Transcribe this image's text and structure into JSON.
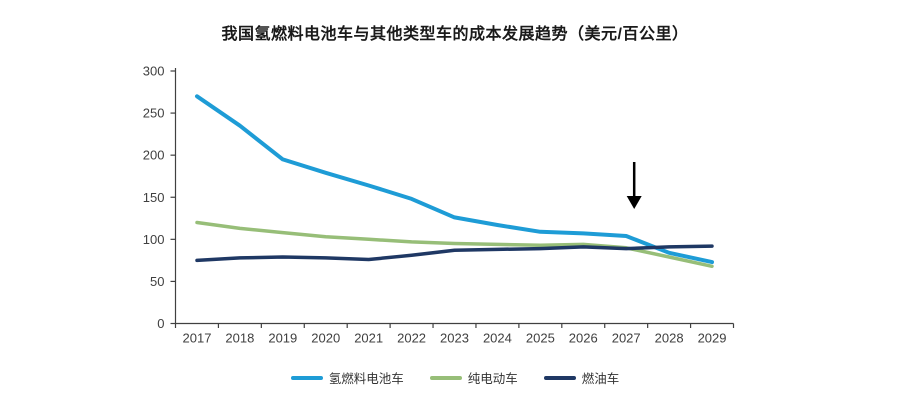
{
  "chart_data": {
    "type": "line",
    "title": "我国氢燃料电池车与其他类型车的成本发展趋势（美元/百公里）",
    "categories": [
      "2017",
      "2018",
      "2019",
      "2020",
      "2021",
      "2022",
      "2023",
      "2024",
      "2025",
      "2026",
      "2027",
      "2028",
      "2029"
    ],
    "series": [
      {
        "name": "氢燃料电池车",
        "color": "#1E9CD6",
        "values": [
          270,
          235,
          195,
          179,
          164,
          148,
          126,
          117,
          109,
          107,
          104,
          84,
          73
        ]
      },
      {
        "name": "纯电动车",
        "color": "#97BE78",
        "values": [
          120,
          113,
          108,
          103,
          100,
          97,
          95,
          94,
          93,
          94,
          90,
          79,
          68
        ]
      },
      {
        "name": "燃油车",
        "color": "#1F3864",
        "values": [
          75,
          78,
          79,
          78,
          76,
          81,
          87,
          88,
          89,
          91,
          89,
          91,
          92
        ]
      }
    ],
    "ylim": [
      0,
      300
    ],
    "y_ticks": [
      0,
      50,
      100,
      150,
      200,
      250,
      300
    ],
    "xlabel": "",
    "ylabel": "",
    "grid": false,
    "legend_position": "bottom",
    "annotation": {
      "type": "down-arrow",
      "category": "2027",
      "color": "#000000"
    },
    "axis_color": "#404040",
    "tick_label_color": "#404040"
  }
}
